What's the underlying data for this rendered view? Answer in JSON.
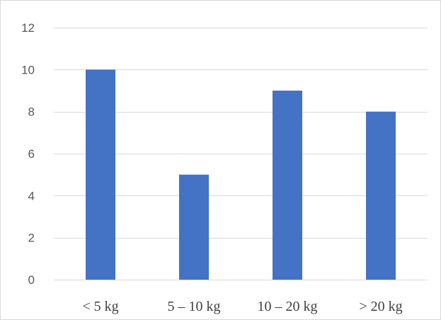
{
  "chart_data": {
    "type": "bar",
    "categories": [
      "< 5 kg",
      "5 – 10 kg",
      "10 – 20 kg",
      "> 20 kg"
    ],
    "values": [
      10,
      5,
      9,
      8
    ],
    "title": "",
    "xlabel": "",
    "ylabel": "",
    "ylim": [
      0,
      12
    ],
    "yticks": [
      0,
      2,
      4,
      6,
      8,
      10,
      12
    ],
    "grid": true,
    "legend": "none",
    "bar_color": "#4472c4",
    "grid_color": "#d9d9d9"
  }
}
